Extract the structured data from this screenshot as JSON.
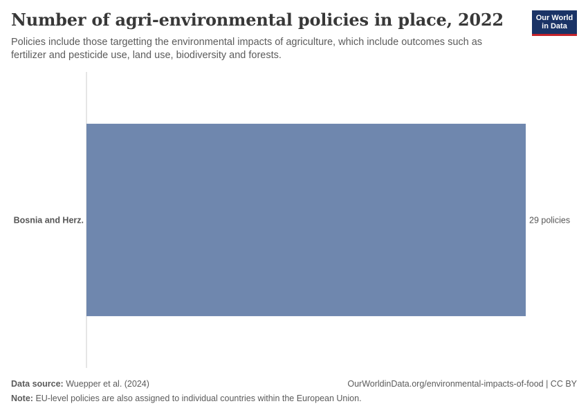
{
  "header": {
    "title": "Number of agri-environmental policies in place, 2022",
    "subtitle": "Policies include those targetting the environmental impacts of agriculture, which include outcomes such as fertilizer and pesticide use, land use, biodiversity and forests."
  },
  "logo": {
    "line1": "Our World",
    "line2": "in Data"
  },
  "chart_data": {
    "type": "bar",
    "orientation": "horizontal",
    "categories": [
      "Bosnia and Herz."
    ],
    "values": [
      29
    ],
    "value_labels": [
      "29 policies"
    ],
    "unit": "policies",
    "xlim": [
      0,
      29
    ],
    "grid": false,
    "color": "#6f87ae"
  },
  "footer": {
    "source_label": "Data source:",
    "source_value": "Wuepper et al. (2024)",
    "url": "OurWorldinData.org/environmental-impacts-of-food | CC BY",
    "note_label": "Note:",
    "note_value": "EU-level policies are also assigned to individual countries within the European Union."
  },
  "colors": {
    "bar": "#6f87ae",
    "logo_bg": "#1a3366",
    "logo_accent": "#c4232b",
    "title": "#383838",
    "text": "#5b5b5b"
  }
}
